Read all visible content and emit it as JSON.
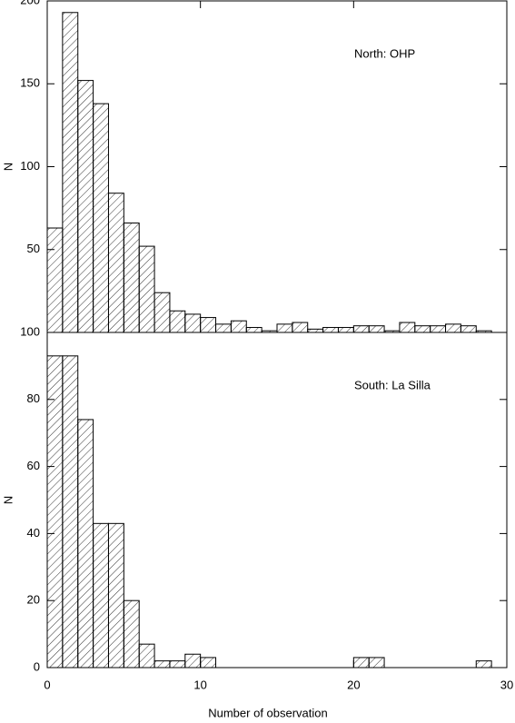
{
  "chart_data": [
    {
      "type": "histogram",
      "annotation": "North: OHP",
      "ylabel": "N",
      "bins": [
        0,
        1,
        2,
        3,
        4,
        5,
        6,
        7,
        8,
        9,
        10,
        11,
        12,
        13,
        14,
        15,
        16,
        17,
        18,
        19,
        20,
        21,
        22,
        23,
        24,
        25,
        26,
        27,
        28,
        29
      ],
      "values": [
        63,
        193,
        152,
        138,
        84,
        66,
        52,
        24,
        13,
        11,
        9,
        5,
        7,
        3,
        1,
        5,
        6,
        2,
        3,
        3,
        4,
        4,
        1,
        6,
        4,
        4,
        5,
        4,
        1
      ],
      "color": "#000000",
      "xlim": [
        0,
        30
      ],
      "ylim": [
        0,
        200
      ],
      "yticks": [
        50,
        100,
        150,
        200
      ]
    },
    {
      "type": "histogram",
      "annotation": "South: La Silla",
      "ylabel": "N",
      "xlabel": "Number of observation",
      "bins": [
        0,
        1,
        2,
        3,
        4,
        5,
        6,
        7,
        8,
        9,
        10,
        11,
        12,
        13,
        14,
        15,
        16,
        17,
        18,
        19,
        20,
        21,
        22,
        23,
        24,
        25,
        26,
        27,
        28,
        29
      ],
      "values": [
        93,
        93,
        74,
        43,
        43,
        20,
        7,
        2,
        2,
        4,
        3,
        0,
        0,
        0,
        0,
        0,
        0,
        0,
        0,
        0,
        3,
        3,
        0,
        0,
        0,
        0,
        0,
        0,
        2
      ],
      "color": "#000000",
      "xlim": [
        0,
        30
      ],
      "ylim": [
        0,
        100
      ],
      "yticks": [
        0,
        20,
        40,
        60,
        80,
        100
      ],
      "xticks": [
        0,
        10,
        20,
        30
      ]
    }
  ]
}
